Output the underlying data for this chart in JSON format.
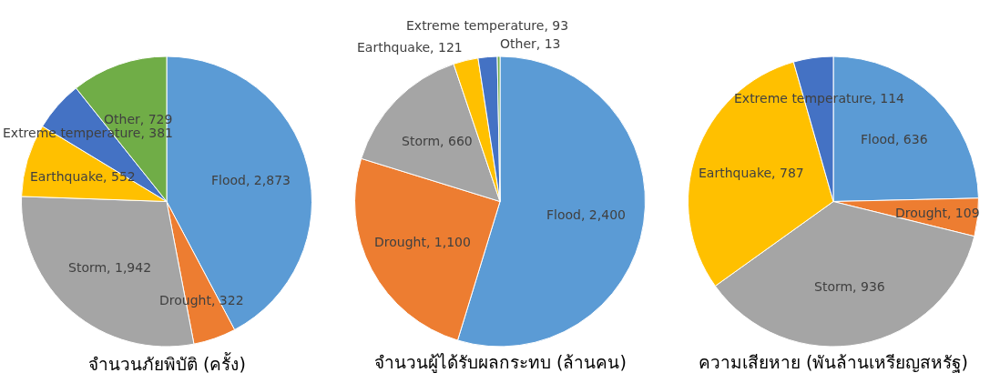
{
  "chart_data": [
    {
      "type": "pie",
      "title": "จำนวนภัยพิบัติ (ครั้ง)",
      "categories": [
        "Flood",
        "Drought",
        "Storm",
        "Earthquake",
        "Extreme temperature",
        "Other"
      ],
      "values": [
        2873,
        322,
        1942,
        552,
        381,
        729
      ],
      "value_labels": [
        "2,873",
        "322",
        "1,942",
        "552",
        "381",
        "729"
      ],
      "colors": [
        "#5b9bd5",
        "#ed7d31",
        "#a5a5a5",
        "#ffc000",
        "#4472c4",
        "#70ad47"
      ],
      "legend": false
    },
    {
      "type": "pie",
      "title": "จำนวนผู้ได้รับผลกระทบ (ล้านคน)",
      "categories": [
        "Flood",
        "Drought",
        "Storm",
        "Earthquake",
        "Extreme temperature",
        "Other"
      ],
      "values": [
        2400,
        1100,
        660,
        121,
        93,
        13
      ],
      "value_labels": [
        "2,400",
        "1,100",
        "660",
        "121",
        "93",
        "13"
      ],
      "colors": [
        "#5b9bd5",
        "#ed7d31",
        "#a5a5a5",
        "#ffc000",
        "#4472c4",
        "#70ad47"
      ],
      "legend": false
    },
    {
      "type": "pie",
      "title": "ความเสียหาย (พันล้านเหรียญสหรัฐ)",
      "categories": [
        "Flood",
        "Drought",
        "Storm",
        "Earthquake",
        "Extreme temperature"
      ],
      "values": [
        636,
        109,
        936,
        787,
        114
      ],
      "value_labels": [
        "636",
        "109",
        "936",
        "787",
        "114"
      ],
      "colors": [
        "#5b9bd5",
        "#ed7d31",
        "#a5a5a5",
        "#ffc000",
        "#4472c4"
      ],
      "legend": false
    }
  ]
}
